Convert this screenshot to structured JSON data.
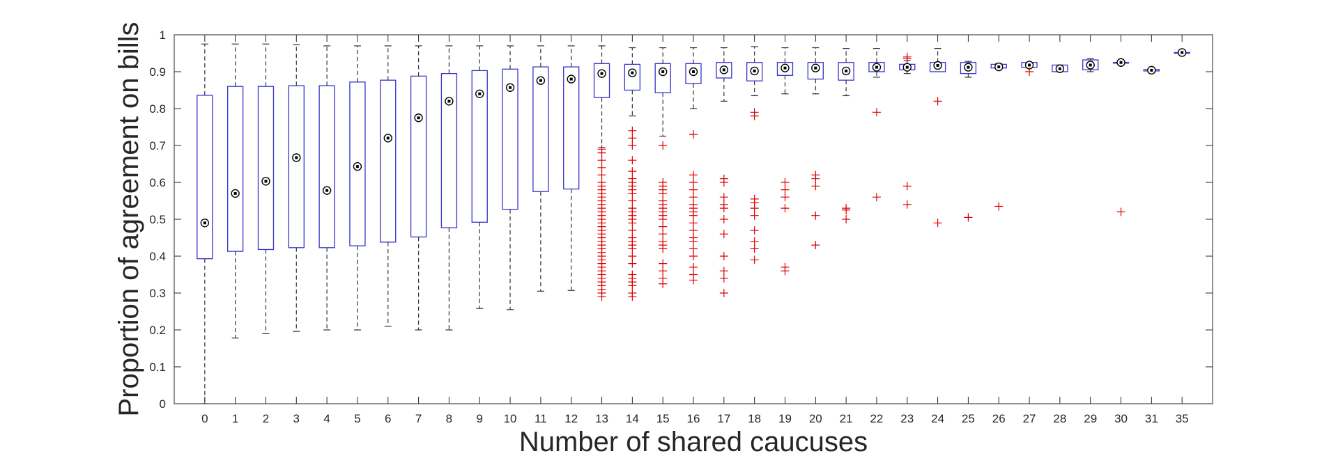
{
  "chart_data": {
    "type": "box",
    "title": "",
    "xlabel": "Number of shared caucuses",
    "ylabel": "Proportion of agreement on bills",
    "ylim": [
      0,
      1
    ],
    "yticks": [
      "0",
      "0.1",
      "0.2",
      "0.3",
      "0.4",
      "0.5",
      "0.6",
      "0.7",
      "0.8",
      "0.9",
      "1"
    ],
    "grid": false,
    "legend": "none",
    "colors": {
      "box": "#3333cc",
      "whisker": "#333333",
      "outlier": "#dd0000",
      "median": "#000000",
      "axis": "#262626"
    },
    "categories": [
      "0",
      "1",
      "2",
      "3",
      "4",
      "5",
      "6",
      "7",
      "8",
      "9",
      "10",
      "11",
      "12",
      "13",
      "14",
      "15",
      "16",
      "17",
      "18",
      "19",
      "20",
      "21",
      "22",
      "23",
      "24",
      "25",
      "26",
      "27",
      "28",
      "29",
      "30",
      "31",
      "35"
    ],
    "boxes": [
      {
        "whisker_low": 0.0,
        "q1": 0.393,
        "median": 0.49,
        "q3": 0.836,
        "whisker_high": 0.975,
        "outliers": []
      },
      {
        "whisker_low": 0.178,
        "q1": 0.413,
        "median": 0.57,
        "q3": 0.86,
        "whisker_high": 0.975,
        "outliers": []
      },
      {
        "whisker_low": 0.19,
        "q1": 0.418,
        "median": 0.603,
        "q3": 0.86,
        "whisker_high": 0.975,
        "outliers": []
      },
      {
        "whisker_low": 0.196,
        "q1": 0.423,
        "median": 0.667,
        "q3": 0.862,
        "whisker_high": 0.973,
        "outliers": []
      },
      {
        "whisker_low": 0.2,
        "q1": 0.423,
        "median": 0.578,
        "q3": 0.862,
        "whisker_high": 0.97,
        "outliers": []
      },
      {
        "whisker_low": 0.2,
        "q1": 0.428,
        "median": 0.643,
        "q3": 0.872,
        "whisker_high": 0.97,
        "outliers": []
      },
      {
        "whisker_low": 0.21,
        "q1": 0.438,
        "median": 0.72,
        "q3": 0.877,
        "whisker_high": 0.97,
        "outliers": []
      },
      {
        "whisker_low": 0.2,
        "q1": 0.452,
        "median": 0.775,
        "q3": 0.888,
        "whisker_high": 0.97,
        "outliers": []
      },
      {
        "whisker_low": 0.2,
        "q1": 0.477,
        "median": 0.82,
        "q3": 0.895,
        "whisker_high": 0.97,
        "outliers": []
      },
      {
        "whisker_low": 0.258,
        "q1": 0.492,
        "median": 0.84,
        "q3": 0.903,
        "whisker_high": 0.97,
        "outliers": []
      },
      {
        "whisker_low": 0.255,
        "q1": 0.527,
        "median": 0.857,
        "q3": 0.907,
        "whisker_high": 0.97,
        "outliers": []
      },
      {
        "whisker_low": 0.305,
        "q1": 0.575,
        "median": 0.876,
        "q3": 0.913,
        "whisker_high": 0.97,
        "outliers": []
      },
      {
        "whisker_low": 0.307,
        "q1": 0.582,
        "median": 0.88,
        "q3": 0.913,
        "whisker_high": 0.97,
        "outliers": []
      },
      {
        "whisker_low": 0.695,
        "q1": 0.83,
        "median": 0.895,
        "q3": 0.922,
        "whisker_high": 0.97,
        "outliers": [
          0.29,
          0.3,
          0.31,
          0.32,
          0.33,
          0.34,
          0.35,
          0.36,
          0.37,
          0.38,
          0.39,
          0.4,
          0.41,
          0.42,
          0.43,
          0.44,
          0.45,
          0.46,
          0.47,
          0.48,
          0.49,
          0.5,
          0.51,
          0.52,
          0.53,
          0.54,
          0.55,
          0.56,
          0.57,
          0.58,
          0.59,
          0.6,
          0.62,
          0.64,
          0.66,
          0.68,
          0.69
        ]
      },
      {
        "whisker_low": 0.78,
        "q1": 0.85,
        "median": 0.897,
        "q3": 0.92,
        "whisker_high": 0.965,
        "outliers": [
          0.29,
          0.3,
          0.32,
          0.33,
          0.34,
          0.35,
          0.38,
          0.4,
          0.42,
          0.43,
          0.44,
          0.45,
          0.47,
          0.49,
          0.5,
          0.51,
          0.52,
          0.53,
          0.55,
          0.57,
          0.58,
          0.59,
          0.6,
          0.61,
          0.63,
          0.66,
          0.7,
          0.72,
          0.74
        ]
      },
      {
        "whisker_low": 0.725,
        "q1": 0.843,
        "median": 0.9,
        "q3": 0.922,
        "whisker_high": 0.965,
        "outliers": [
          0.325,
          0.34,
          0.36,
          0.38,
          0.42,
          0.43,
          0.44,
          0.46,
          0.48,
          0.5,
          0.51,
          0.52,
          0.53,
          0.54,
          0.55,
          0.57,
          0.58,
          0.59,
          0.6,
          0.7
        ]
      },
      {
        "whisker_low": 0.8,
        "q1": 0.868,
        "median": 0.9,
        "q3": 0.922,
        "whisker_high": 0.965,
        "outliers": [
          0.335,
          0.35,
          0.37,
          0.4,
          0.42,
          0.44,
          0.45,
          0.47,
          0.49,
          0.51,
          0.52,
          0.53,
          0.54,
          0.56,
          0.58,
          0.6,
          0.62,
          0.73
        ]
      },
      {
        "whisker_low": 0.82,
        "q1": 0.883,
        "median": 0.905,
        "q3": 0.925,
        "whisker_high": 0.965,
        "outliers": [
          0.3,
          0.34,
          0.36,
          0.4,
          0.46,
          0.5,
          0.53,
          0.54,
          0.56,
          0.6,
          0.61
        ]
      },
      {
        "whisker_low": 0.835,
        "q1": 0.875,
        "median": 0.902,
        "q3": 0.925,
        "whisker_high": 0.968,
        "outliers": [
          0.39,
          0.42,
          0.44,
          0.47,
          0.51,
          0.53,
          0.545,
          0.555,
          0.78,
          0.79
        ]
      },
      {
        "whisker_low": 0.84,
        "q1": 0.89,
        "median": 0.91,
        "q3": 0.925,
        "whisker_high": 0.965,
        "outliers": [
          0.36,
          0.37,
          0.53,
          0.56,
          0.58,
          0.6
        ]
      },
      {
        "whisker_low": 0.84,
        "q1": 0.88,
        "median": 0.91,
        "q3": 0.925,
        "whisker_high": 0.965,
        "outliers": [
          0.43,
          0.51,
          0.59,
          0.61,
          0.62
        ]
      },
      {
        "whisker_low": 0.835,
        "q1": 0.877,
        "median": 0.902,
        "q3": 0.925,
        "whisker_high": 0.963,
        "outliers": [
          0.5,
          0.525,
          0.53
        ]
      },
      {
        "whisker_low": 0.885,
        "q1": 0.9,
        "median": 0.912,
        "q3": 0.925,
        "whisker_high": 0.963,
        "outliers": [
          0.56,
          0.79
        ]
      },
      {
        "whisker_low": 0.895,
        "q1": 0.905,
        "median": 0.912,
        "q3": 0.92,
        "whisker_high": 0.93,
        "outliers": [
          0.54,
          0.59,
          0.935,
          0.94
        ]
      },
      {
        "whisker_low": 0.9,
        "q1": 0.9,
        "median": 0.917,
        "q3": 0.925,
        "whisker_high": 0.963,
        "outliers": [
          0.49,
          0.82
        ]
      },
      {
        "whisker_low": 0.885,
        "q1": 0.895,
        "median": 0.912,
        "q3": 0.925,
        "whisker_high": 0.928,
        "outliers": [
          0.505
        ]
      },
      {
        "whisker_low": 0.908,
        "q1": 0.91,
        "median": 0.913,
        "q3": 0.92,
        "whisker_high": 0.922,
        "outliers": [
          0.535
        ]
      },
      {
        "whisker_low": 0.912,
        "q1": 0.912,
        "median": 0.918,
        "q3": 0.925,
        "whisker_high": 0.925,
        "outliers": [
          0.9
        ]
      },
      {
        "whisker_low": 0.9,
        "q1": 0.9,
        "median": 0.908,
        "q3": 0.918,
        "whisker_high": 0.918,
        "outliers": []
      },
      {
        "whisker_low": 0.9,
        "q1": 0.905,
        "median": 0.918,
        "q3": 0.932,
        "whisker_high": 0.935,
        "outliers": []
      },
      {
        "whisker_low": 0.925,
        "q1": 0.925,
        "median": 0.925,
        "q3": 0.925,
        "whisker_high": 0.925,
        "outliers": [
          0.52
        ]
      },
      {
        "whisker_low": 0.902,
        "q1": 0.902,
        "median": 0.904,
        "q3": 0.906,
        "whisker_high": 0.906,
        "outliers": []
      },
      {
        "whisker_low": 0.952,
        "q1": 0.952,
        "median": 0.952,
        "q3": 0.952,
        "whisker_high": 0.952,
        "outliers": []
      }
    ]
  }
}
